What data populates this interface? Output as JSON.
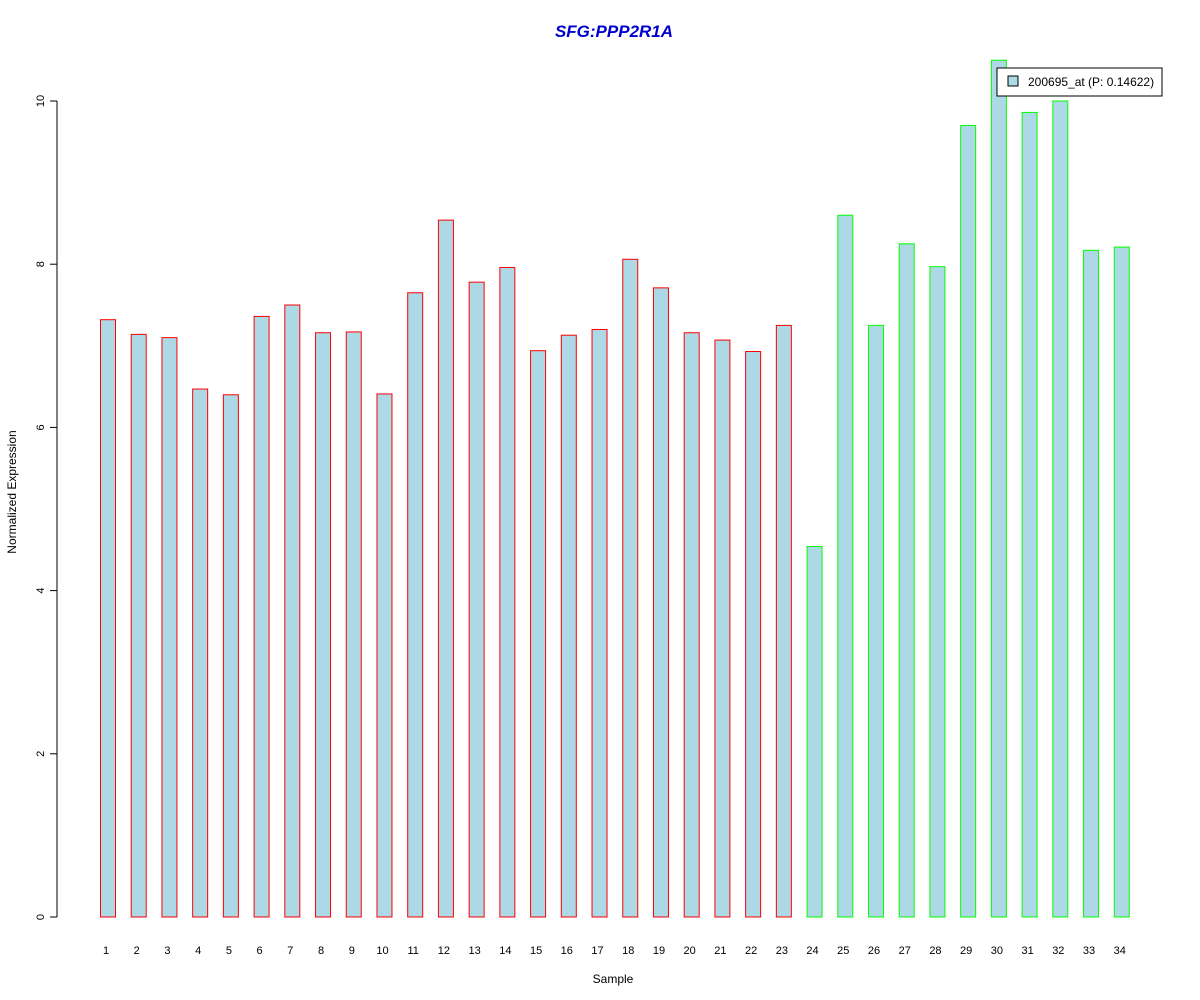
{
  "chart_data": {
    "type": "bar",
    "title": "SFG:PPP2R1A",
    "xlabel": "Sample",
    "ylabel": "Normalized Expression",
    "categories": [
      "1",
      "2",
      "3",
      "4",
      "5",
      "6",
      "7",
      "8",
      "9",
      "10",
      "11",
      "12",
      "13",
      "14",
      "15",
      "16",
      "17",
      "18",
      "19",
      "20",
      "21",
      "22",
      "23",
      "24",
      "25",
      "26",
      "27",
      "28",
      "29",
      "30",
      "31",
      "32",
      "33",
      "34"
    ],
    "series": [
      {
        "name": "200695_at (P: 0.14622)",
        "values": [
          7.32,
          7.14,
          7.1,
          6.47,
          6.4,
          7.36,
          7.5,
          7.16,
          7.17,
          6.41,
          7.65,
          8.54,
          7.78,
          7.96,
          6.94,
          7.13,
          7.2,
          8.06,
          7.71,
          7.16,
          7.07,
          6.93,
          7.25,
          4.54,
          8.6,
          7.25,
          8.25,
          7.97,
          9.7,
          10.5,
          9.86,
          10.0,
          8.17,
          8.21
        ]
      }
    ],
    "bar_groups": [
      {
        "from": 1,
        "to": 23,
        "outline": "#ff0000"
      },
      {
        "from": 24,
        "to": 34,
        "outline": "#00ff00"
      }
    ],
    "yticks": [
      0,
      2,
      4,
      6,
      8,
      10
    ],
    "ylim": [
      0,
      10.5
    ],
    "grid": false,
    "legend_position": "top-right",
    "colors": {
      "bar_fill": "#add8e6",
      "title": "#0000cd",
      "axis": "#000000"
    }
  }
}
